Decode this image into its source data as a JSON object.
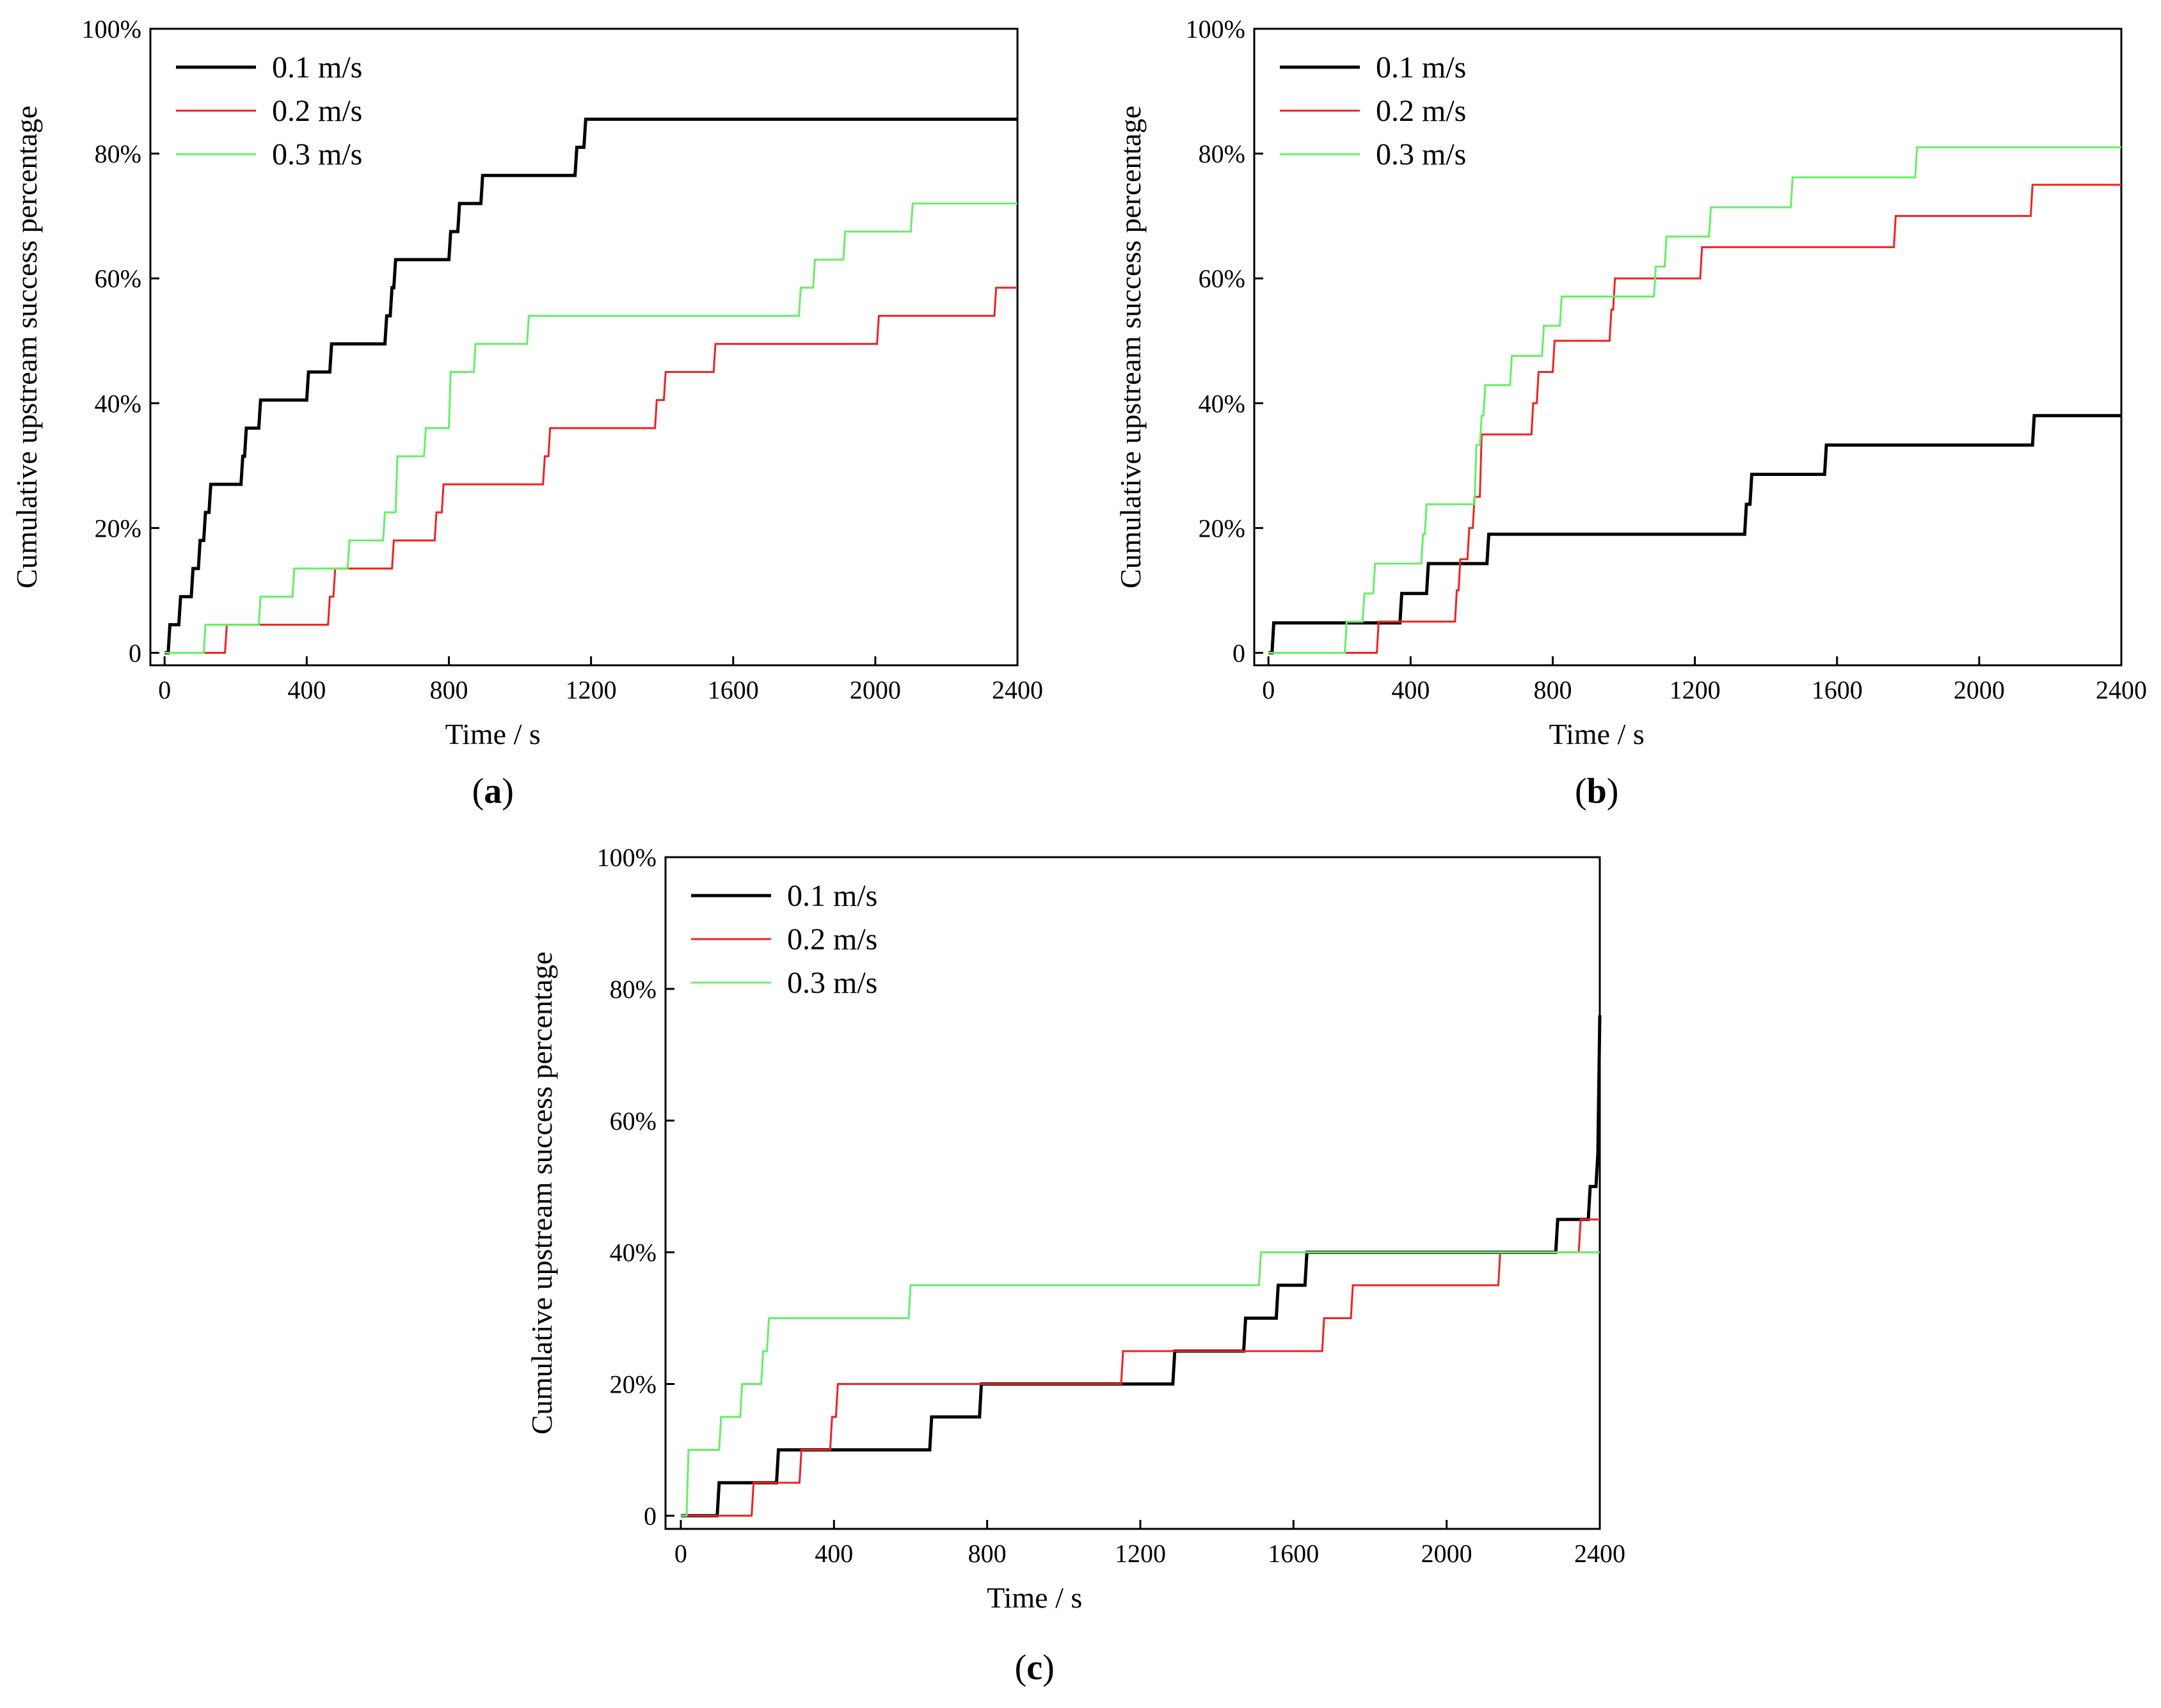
{
  "figure": {
    "panels": [
      "a",
      "b",
      "c"
    ]
  },
  "chart_data": [
    {
      "type": "line",
      "step": true,
      "panel_label": "a",
      "title": "",
      "xlabel": "Time / s",
      "ylabel": "Cumulative upstream success percentage",
      "xlim": [
        -40,
        2400
      ],
      "ylim": [
        -2,
        100
      ],
      "x_ticks": [
        0,
        400,
        800,
        1200,
        1600,
        2000,
        2400
      ],
      "x_tick_labels": [
        "0",
        "400",
        "800",
        "1200",
        "1600",
        "2000",
        "2400"
      ],
      "y_ticks": [
        0,
        20,
        40,
        60,
        80,
        100
      ],
      "y_tick_labels": [
        "0",
        "20%",
        "40%",
        "60%",
        "80%",
        "100%"
      ],
      "legend_position": "top-left",
      "series": [
        {
          "name": "0.1 m/s",
          "color": "#000000",
          "width": 5,
          "points": [
            [
              0,
              0
            ],
            [
              10,
              0
            ],
            [
              15,
              4.5
            ],
            [
              40,
              4.5
            ],
            [
              45,
              9
            ],
            [
              75,
              9
            ],
            [
              80,
              13.5
            ],
            [
              95,
              13.5
            ],
            [
              100,
              18
            ],
            [
              110,
              18
            ],
            [
              115,
              22.5
            ],
            [
              125,
              22.5
            ],
            [
              130,
              27
            ],
            [
              215,
              27
            ],
            [
              220,
              31.5
            ],
            [
              225,
              31.5
            ],
            [
              230,
              36
            ],
            [
              265,
              36
            ],
            [
              270,
              40.5
            ],
            [
              400,
              40.5
            ],
            [
              405,
              45
            ],
            [
              465,
              45
            ],
            [
              470,
              49.5
            ],
            [
              620,
              49.5
            ],
            [
              625,
              54
            ],
            [
              635,
              54
            ],
            [
              640,
              58.5
            ],
            [
              645,
              58.5
            ],
            [
              650,
              63
            ],
            [
              800,
              63
            ],
            [
              805,
              67.5
            ],
            [
              825,
              67.5
            ],
            [
              830,
              72
            ],
            [
              890,
              72
            ],
            [
              895,
              76.5
            ],
            [
              1155,
              76.5
            ],
            [
              1160,
              81
            ],
            [
              1180,
              81
            ],
            [
              1185,
              85.5
            ],
            [
              2400,
              85.5
            ]
          ]
        },
        {
          "name": "0.2 m/s",
          "color": "#ee2222",
          "width": 3,
          "points": [
            [
              0,
              0
            ],
            [
              170,
              0
            ],
            [
              175,
              4.5
            ],
            [
              460,
              4.5
            ],
            [
              465,
              9
            ],
            [
              475,
              9
            ],
            [
              480,
              13.5
            ],
            [
              640,
              13.5
            ],
            [
              645,
              18
            ],
            [
              760,
              18
            ],
            [
              765,
              22.5
            ],
            [
              780,
              22.5
            ],
            [
              785,
              27
            ],
            [
              1065,
              27
            ],
            [
              1070,
              31.5
            ],
            [
              1080,
              31.5
            ],
            [
              1085,
              36
            ],
            [
              1380,
              36
            ],
            [
              1385,
              40.5
            ],
            [
              1405,
              40.5
            ],
            [
              1410,
              45
            ],
            [
              1545,
              45
            ],
            [
              1550,
              49.5
            ],
            [
              2005,
              49.5
            ],
            [
              2010,
              54
            ],
            [
              2335,
              54
            ],
            [
              2340,
              58.5
            ],
            [
              2400,
              58.5
            ]
          ]
        },
        {
          "name": "0.3 m/s",
          "color": "#66ee66",
          "width": 3,
          "points": [
            [
              0,
              0
            ],
            [
              110,
              0
            ],
            [
              115,
              4.5
            ],
            [
              265,
              4.5
            ],
            [
              270,
              9
            ],
            [
              360,
              9
            ],
            [
              365,
              13.5
            ],
            [
              515,
              13.5
            ],
            [
              520,
              18
            ],
            [
              615,
              18
            ],
            [
              620,
              22.5
            ],
            [
              650,
              22.5
            ],
            [
              655,
              31.5
            ],
            [
              730,
              31.5
            ],
            [
              735,
              36
            ],
            [
              800,
              36
            ],
            [
              805,
              45
            ],
            [
              870,
              45
            ],
            [
              875,
              49.5
            ],
            [
              1020,
              49.5
            ],
            [
              1025,
              54
            ],
            [
              1785,
              54
            ],
            [
              1790,
              58.5
            ],
            [
              1825,
              58.5
            ],
            [
              1830,
              63
            ],
            [
              1910,
              63
            ],
            [
              1915,
              67.5
            ],
            [
              2100,
              67.5
            ],
            [
              2105,
              72
            ],
            [
              2400,
              72
            ]
          ]
        }
      ]
    },
    {
      "type": "line",
      "step": true,
      "panel_label": "b",
      "title": "",
      "xlabel": "Time / s",
      "ylabel": "Cumulative upstream success percentage",
      "xlim": [
        -40,
        2400
      ],
      "ylim": [
        -2,
        100
      ],
      "x_ticks": [
        0,
        400,
        800,
        1200,
        1600,
        2000,
        2400
      ],
      "x_tick_labels": [
        "0",
        "400",
        "800",
        "1200",
        "1600",
        "2000",
        "2400"
      ],
      "y_ticks": [
        0,
        20,
        40,
        60,
        80,
        100
      ],
      "y_tick_labels": [
        "0",
        "20%",
        "40%",
        "60%",
        "80%",
        "100%"
      ],
      "legend_position": "top-left",
      "series": [
        {
          "name": "0.1 m/s",
          "color": "#000000",
          "width": 5,
          "points": [
            [
              0,
              0
            ],
            [
              10,
              0
            ],
            [
              15,
              4.8
            ],
            [
              370,
              4.8
            ],
            [
              375,
              9.5
            ],
            [
              445,
              9.5
            ],
            [
              450,
              14.3
            ],
            [
              615,
              14.3
            ],
            [
              620,
              19
            ],
            [
              1340,
              19
            ],
            [
              1345,
              23.8
            ],
            [
              1355,
              23.8
            ],
            [
              1360,
              28.6
            ],
            [
              1565,
              28.6
            ],
            [
              1570,
              33.3
            ],
            [
              2150,
              33.3
            ],
            [
              2155,
              38
            ],
            [
              2400,
              38
            ]
          ]
        },
        {
          "name": "0.2 m/s",
          "color": "#ee2222",
          "width": 3,
          "points": [
            [
              0,
              0
            ],
            [
              305,
              0
            ],
            [
              310,
              5
            ],
            [
              525,
              5
            ],
            [
              530,
              10
            ],
            [
              535,
              10
            ],
            [
              540,
              15
            ],
            [
              560,
              15
            ],
            [
              565,
              20
            ],
            [
              575,
              20
            ],
            [
              580,
              25
            ],
            [
              595,
              25
            ],
            [
              600,
              35
            ],
            [
              740,
              35
            ],
            [
              745,
              40
            ],
            [
              755,
              40
            ],
            [
              760,
              45
            ],
            [
              800,
              45
            ],
            [
              805,
              50
            ],
            [
              960,
              50
            ],
            [
              965,
              55
            ],
            [
              970,
              55
            ],
            [
              975,
              60
            ],
            [
              1215,
              60
            ],
            [
              1220,
              65
            ],
            [
              1760,
              65
            ],
            [
              1765,
              70
            ],
            [
              2145,
              70
            ],
            [
              2150,
              75
            ],
            [
              2400,
              75
            ]
          ]
        },
        {
          "name": "0.3 m/s",
          "color": "#66ee66",
          "width": 3,
          "points": [
            [
              0,
              0
            ],
            [
              215,
              0
            ],
            [
              220,
              5
            ],
            [
              265,
              5
            ],
            [
              270,
              9.5
            ],
            [
              295,
              9.5
            ],
            [
              300,
              14.3
            ],
            [
              430,
              14.3
            ],
            [
              435,
              19
            ],
            [
              440,
              19
            ],
            [
              445,
              23.8
            ],
            [
              580,
              23.8
            ],
            [
              585,
              33.3
            ],
            [
              595,
              33.3
            ],
            [
              600,
              38
            ],
            [
              605,
              38
            ],
            [
              610,
              42.9
            ],
            [
              680,
              42.9
            ],
            [
              685,
              47.6
            ],
            [
              770,
              47.6
            ],
            [
              775,
              52.4
            ],
            [
              820,
              52.4
            ],
            [
              825,
              57.1
            ],
            [
              1085,
              57.1
            ],
            [
              1090,
              61.9
            ],
            [
              1115,
              61.9
            ],
            [
              1120,
              66.7
            ],
            [
              1240,
              66.7
            ],
            [
              1245,
              71.4
            ],
            [
              1470,
              71.4
            ],
            [
              1475,
              76.2
            ],
            [
              1820,
              76.2
            ],
            [
              1825,
              81
            ],
            [
              2400,
              81
            ]
          ]
        }
      ]
    },
    {
      "type": "line",
      "step": true,
      "panel_label": "c",
      "title": "",
      "xlabel": "Time / s",
      "ylabel": "Cumulative upstream success percentage",
      "xlim": [
        -40,
        2400
      ],
      "ylim": [
        -2,
        100
      ],
      "x_ticks": [
        0,
        400,
        800,
        1200,
        1600,
        2000,
        2400
      ],
      "x_tick_labels": [
        "0",
        "400",
        "800",
        "1200",
        "1600",
        "2000",
        "2400"
      ],
      "y_ticks": [
        0,
        20,
        40,
        60,
        80,
        100
      ],
      "y_tick_labels": [
        "0",
        "20%",
        "40%",
        "60%",
        "80%",
        "100%"
      ],
      "legend_position": "top-left",
      "series": [
        {
          "name": "0.1 m/s",
          "color": "#000000",
          "width": 5,
          "points": [
            [
              0,
              0
            ],
            [
              95,
              0
            ],
            [
              100,
              5
            ],
            [
              250,
              5
            ],
            [
              255,
              10
            ],
            [
              650,
              10
            ],
            [
              655,
              15
            ],
            [
              780,
              15
            ],
            [
              785,
              20
            ],
            [
              1285,
              20
            ],
            [
              1290,
              25
            ],
            [
              1470,
              25
            ],
            [
              1475,
              30
            ],
            [
              1555,
              30
            ],
            [
              1560,
              35
            ],
            [
              1630,
              35
            ],
            [
              1635,
              40
            ],
            [
              2285,
              40
            ],
            [
              2290,
              45
            ],
            [
              2370,
              45
            ],
            [
              2375,
              50
            ],
            [
              2390,
              50
            ],
            [
              2395,
              55
            ],
            [
              2400,
              76
            ]
          ]
        },
        {
          "name": "0.2 m/s",
          "color": "#ee2222",
          "width": 3,
          "points": [
            [
              0,
              0
            ],
            [
              185,
              0
            ],
            [
              190,
              5
            ],
            [
              310,
              5
            ],
            [
              315,
              10
            ],
            [
              390,
              10
            ],
            [
              395,
              15
            ],
            [
              405,
              15
            ],
            [
              410,
              20
            ],
            [
              1150,
              20
            ],
            [
              1155,
              25
            ],
            [
              1675,
              25
            ],
            [
              1680,
              30
            ],
            [
              1750,
              30
            ],
            [
              1755,
              35
            ],
            [
              2135,
              35
            ],
            [
              2140,
              40
            ],
            [
              2345,
              40
            ],
            [
              2350,
              45
            ],
            [
              2400,
              45
            ]
          ]
        },
        {
          "name": "0.3 m/s",
          "color": "#66ee66",
          "width": 3,
          "points": [
            [
              0,
              0
            ],
            [
              15,
              0
            ],
            [
              20,
              10
            ],
            [
              100,
              10
            ],
            [
              105,
              15
            ],
            [
              155,
              15
            ],
            [
              160,
              20
            ],
            [
              210,
              20
            ],
            [
              215,
              25
            ],
            [
              225,
              25
            ],
            [
              230,
              30
            ],
            [
              595,
              30
            ],
            [
              600,
              35
            ],
            [
              1510,
              35
            ],
            [
              1515,
              40
            ],
            [
              2400,
              40
            ]
          ]
        }
      ]
    }
  ]
}
